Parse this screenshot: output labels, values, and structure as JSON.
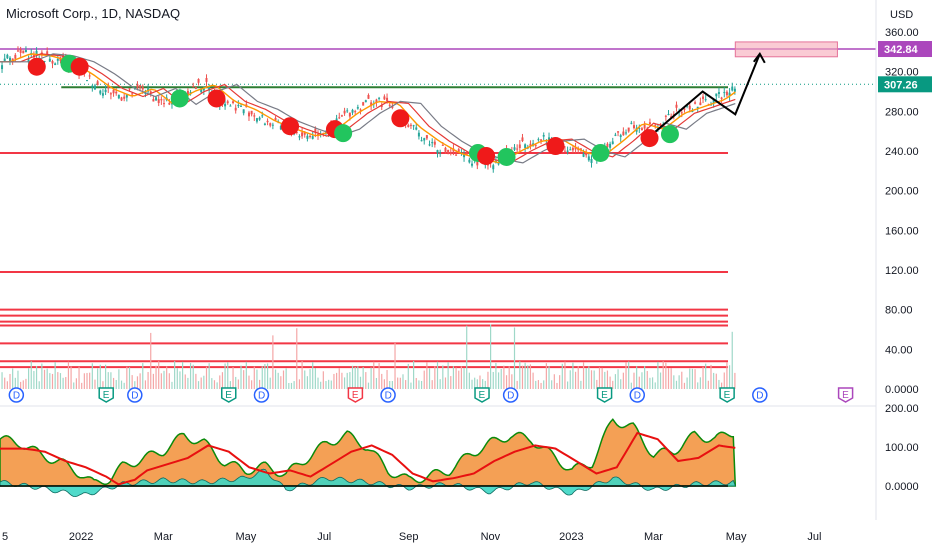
{
  "header": {
    "title": "Microsoft Corp., 1D, NASDAQ"
  },
  "chart_data": {
    "type": "line",
    "currency": "USD",
    "price_axis": {
      "ticks": [
        "360.00",
        "320.00",
        "280.00",
        "240.00",
        "200.00",
        "160.00",
        "120.00",
        "80.00",
        "40.00",
        "0.0000"
      ],
      "min": 0,
      "max": 360
    },
    "oscillator_axis": {
      "ticks": [
        "200.00",
        "100.00",
        "0.0000"
      ],
      "min": -40,
      "max": 200
    },
    "x_labels": [
      {
        "label": "5",
        "t": 0
      },
      {
        "label": "2022",
        "t": 2
      },
      {
        "label": "Mar",
        "t": 4
      },
      {
        "label": "May",
        "t": 6
      },
      {
        "label": "Jul",
        "t": 8
      },
      {
        "label": "Sep",
        "t": 10
      },
      {
        "label": "Nov",
        "t": 12
      },
      {
        "label": "2023",
        "t": 14
      },
      {
        "label": "Mar",
        "t": 16
      },
      {
        "label": "May",
        "t": 18
      },
      {
        "label": "Jul",
        "t": 20
      }
    ],
    "price_series": [
      {
        "t": 0,
        "v": 330
      },
      {
        "t": 0.5,
        "v": 338
      },
      {
        "t": 1,
        "v": 336
      },
      {
        "t": 1.5,
        "v": 330
      },
      {
        "t": 2,
        "v": 318
      },
      {
        "t": 2.5,
        "v": 303
      },
      {
        "t": 3,
        "v": 295
      },
      {
        "t": 3.5,
        "v": 303
      },
      {
        "t": 4,
        "v": 287
      },
      {
        "t": 4.5,
        "v": 300
      },
      {
        "t": 5,
        "v": 307
      },
      {
        "t": 5.5,
        "v": 290
      },
      {
        "t": 6,
        "v": 282
      },
      {
        "t": 6.5,
        "v": 270
      },
      {
        "t": 7,
        "v": 262
      },
      {
        "t": 7.5,
        "v": 255
      },
      {
        "t": 8,
        "v": 262
      },
      {
        "t": 8.5,
        "v": 278
      },
      {
        "t": 9,
        "v": 290
      },
      {
        "t": 9.5,
        "v": 288
      },
      {
        "t": 10,
        "v": 265
      },
      {
        "t": 10.5,
        "v": 250
      },
      {
        "t": 11,
        "v": 238
      },
      {
        "t": 11.5,
        "v": 232
      },
      {
        "t": 12,
        "v": 228
      },
      {
        "t": 12.5,
        "v": 240
      },
      {
        "t": 13,
        "v": 250
      },
      {
        "t": 13.5,
        "v": 252
      },
      {
        "t": 14,
        "v": 240
      },
      {
        "t": 14.5,
        "v": 234
      },
      {
        "t": 15,
        "v": 250
      },
      {
        "t": 15.5,
        "v": 268
      },
      {
        "t": 16,
        "v": 262
      },
      {
        "t": 16.5,
        "v": 278
      },
      {
        "t": 17,
        "v": 285
      },
      {
        "t": 17.5,
        "v": 292
      },
      {
        "t": 18,
        "v": 307
      }
    ],
    "levels": [
      {
        "value": 342.84,
        "label": "342.84",
        "color": "#ab47bc"
      },
      {
        "value": 307.26,
        "label": "307.26",
        "color": "#089981"
      }
    ],
    "horizontal_lines": [
      238,
      118,
      80,
      74,
      68,
      64,
      46,
      28,
      22
    ],
    "target_box": {
      "t0": 18,
      "t1": 20.5,
      "v0": 335,
      "v1": 350
    },
    "projection_path": [
      {
        "t": 16,
        "v": 258
      },
      {
        "t": 17.2,
        "v": 300
      },
      {
        "t": 18,
        "v": 277
      },
      {
        "t": 18.6,
        "v": 338
      }
    ],
    "event_markers": [
      {
        "t": 0.4,
        "letter": "D",
        "type": "dividend"
      },
      {
        "t": 2.6,
        "letter": "E",
        "type": "earnings"
      },
      {
        "t": 3.3,
        "letter": "D",
        "type": "dividend"
      },
      {
        "t": 5.6,
        "letter": "E",
        "type": "earnings"
      },
      {
        "t": 6.4,
        "letter": "D",
        "type": "dividend"
      },
      {
        "t": 8.7,
        "letter": "E",
        "type": "earnings-negative"
      },
      {
        "t": 9.5,
        "letter": "D",
        "type": "dividend"
      },
      {
        "t": 11.8,
        "letter": "E",
        "type": "earnings"
      },
      {
        "t": 12.5,
        "letter": "D",
        "type": "dividend"
      },
      {
        "t": 14.8,
        "letter": "E",
        "type": "earnings"
      },
      {
        "t": 15.6,
        "letter": "D",
        "type": "dividend"
      },
      {
        "t": 17.8,
        "letter": "E",
        "type": "earnings"
      },
      {
        "t": 18.6,
        "letter": "D",
        "type": "dividend"
      },
      {
        "t": 20.7,
        "letter": "E",
        "type": "earnings-future"
      }
    ],
    "signals": [
      {
        "t": 0.9,
        "v": 325,
        "side": "sell"
      },
      {
        "t": 1.7,
        "v": 328,
        "side": "buy"
      },
      {
        "t": 1.95,
        "v": 325,
        "side": "sell"
      },
      {
        "t": 4.4,
        "v": 293,
        "side": "buy"
      },
      {
        "t": 5.3,
        "v": 293,
        "side": "sell"
      },
      {
        "t": 7.1,
        "v": 265,
        "side": "sell"
      },
      {
        "t": 8.2,
        "v": 262,
        "side": "sell"
      },
      {
        "t": 8.4,
        "v": 258,
        "side": "buy"
      },
      {
        "t": 9.8,
        "v": 273,
        "side": "sell"
      },
      {
        "t": 11.7,
        "v": 238,
        "side": "buy"
      },
      {
        "t": 11.9,
        "v": 235,
        "side": "sell"
      },
      {
        "t": 12.4,
        "v": 234,
        "side": "buy"
      },
      {
        "t": 13.6,
        "v": 245,
        "side": "sell"
      },
      {
        "t": 14.7,
        "v": 238,
        "side": "buy"
      },
      {
        "t": 15.9,
        "v": 253,
        "side": "sell"
      },
      {
        "t": 16.4,
        "v": 257,
        "side": "buy"
      }
    ],
    "oscillator_series": [
      {
        "t": 0,
        "v": 120
      },
      {
        "t": 0.5,
        "v": 110
      },
      {
        "t": 1,
        "v": 80
      },
      {
        "t": 1.5,
        "v": 60
      },
      {
        "t": 2,
        "v": 30
      },
      {
        "t": 2.3,
        "v": 5
      },
      {
        "t": 2.7,
        "v": 20
      },
      {
        "t": 3,
        "v": 50
      },
      {
        "t": 3.5,
        "v": 70
      },
      {
        "t": 4,
        "v": 90
      },
      {
        "t": 4.5,
        "v": 130
      },
      {
        "t": 5,
        "v": 110
      },
      {
        "t": 5.5,
        "v": 60
      },
      {
        "t": 6,
        "v": 40
      },
      {
        "t": 6.5,
        "v": 50
      },
      {
        "t": 7,
        "v": 30
      },
      {
        "t": 7.5,
        "v": 70
      },
      {
        "t": 8,
        "v": 110
      },
      {
        "t": 8.5,
        "v": 130
      },
      {
        "t": 9,
        "v": 100
      },
      {
        "t": 9.5,
        "v": 40
      },
      {
        "t": 10,
        "v": 15
      },
      {
        "t": 10.5,
        "v": 25
      },
      {
        "t": 11,
        "v": 40
      },
      {
        "t": 11.5,
        "v": 80
      },
      {
        "t": 12,
        "v": 110
      },
      {
        "t": 12.5,
        "v": 130
      },
      {
        "t": 13,
        "v": 120
      },
      {
        "t": 13.5,
        "v": 80
      },
      {
        "t": 14,
        "v": 40
      },
      {
        "t": 14.5,
        "v": 60
      },
      {
        "t": 15,
        "v": 170
      },
      {
        "t": 15.5,
        "v": 150
      },
      {
        "t": 16,
        "v": 80
      },
      {
        "t": 16.5,
        "v": 90
      },
      {
        "t": 17,
        "v": 130
      },
      {
        "t": 17.5,
        "v": 120
      },
      {
        "t": 18,
        "v": 140
      }
    ],
    "histogram_series": [
      {
        "t": 0,
        "v": 10
      },
      {
        "t": 1,
        "v": -5
      },
      {
        "t": 2,
        "v": -25
      },
      {
        "t": 3,
        "v": 5
      },
      {
        "t": 4,
        "v": 15
      },
      {
        "t": 5,
        "v": 10
      },
      {
        "t": 6,
        "v": 20
      },
      {
        "t": 6.5,
        "v": 40
      },
      {
        "t": 7,
        "v": -10
      },
      {
        "t": 8,
        "v": 20
      },
      {
        "t": 9,
        "v": 10
      },
      {
        "t": 10,
        "v": -5
      },
      {
        "t": 11,
        "v": 5
      },
      {
        "t": 12,
        "v": -15
      },
      {
        "t": 13,
        "v": 10
      },
      {
        "t": 14,
        "v": -20
      },
      {
        "t": 15,
        "v": 20
      },
      {
        "t": 16,
        "v": -10
      },
      {
        "t": 17,
        "v": 5
      },
      {
        "t": 18,
        "v": 10
      }
    ],
    "grid": false,
    "legend": "none"
  },
  "colors": {
    "buy": "#22c55e",
    "sell": "#ef1a1a",
    "level_line": "#f23645",
    "oscillator_fill": "#f4a055",
    "oscillator_line": "#0b8a0b",
    "histogram": "#3dd6c4",
    "signal_line": "#e81010"
  }
}
